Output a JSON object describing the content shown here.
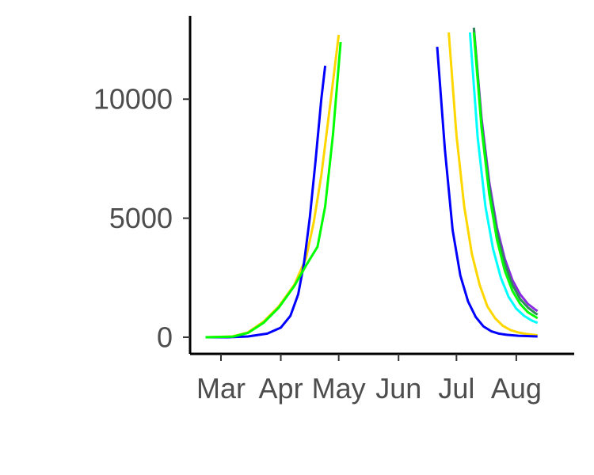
{
  "chart_data": {
    "type": "line",
    "title": "",
    "xlabel": "",
    "ylabel": "",
    "x_axis": {
      "type": "date",
      "range": [
        "2020-02-14",
        "2020-08-31"
      ],
      "ticks": [
        {
          "date": "2020-03-01",
          "label": "Mar"
        },
        {
          "date": "2020-04-01",
          "label": "Apr"
        },
        {
          "date": "2020-05-01",
          "label": "May"
        },
        {
          "date": "2020-06-01",
          "label": "Jun"
        },
        {
          "date": "2020-07-01",
          "label": "Jul"
        },
        {
          "date": "2020-08-01",
          "label": "Aug"
        }
      ]
    },
    "y_axis": {
      "range": [
        -700,
        13500
      ],
      "ticks": [
        {
          "value": 0,
          "label": "0"
        },
        {
          "value": 5000,
          "label": "5000"
        },
        {
          "value": 10000,
          "label": "10000"
        }
      ]
    },
    "grid": false,
    "legend": "none",
    "series": [
      {
        "color": "#8a2be2",
        "points": [
          [
            "2020-07-10",
            13000
          ],
          [
            "2020-07-14",
            9200
          ],
          [
            "2020-07-18",
            6500
          ],
          [
            "2020-07-22",
            4600
          ],
          [
            "2020-07-26",
            3300
          ],
          [
            "2020-07-30",
            2400
          ],
          [
            "2020-08-03",
            1800
          ],
          [
            "2020-08-07",
            1400
          ],
          [
            "2020-08-11",
            1150
          ],
          [
            "2020-08-12",
            1100
          ]
        ]
      },
      {
        "color": "#2e8b57",
        "points": [
          [
            "2020-07-10",
            13000
          ],
          [
            "2020-07-14",
            9000
          ],
          [
            "2020-07-18",
            6300
          ],
          [
            "2020-07-22",
            4400
          ],
          [
            "2020-07-26",
            3100
          ],
          [
            "2020-07-30",
            2200
          ],
          [
            "2020-08-03",
            1600
          ],
          [
            "2020-08-07",
            1250
          ],
          [
            "2020-08-11",
            1000
          ],
          [
            "2020-08-12",
            950
          ]
        ]
      },
      {
        "color": "#00ffff",
        "points": [
          [
            "2020-07-08",
            12800
          ],
          [
            "2020-07-12",
            8400
          ],
          [
            "2020-07-16",
            5500
          ],
          [
            "2020-07-20",
            3700
          ],
          [
            "2020-07-24",
            2500
          ],
          [
            "2020-07-28",
            1700
          ],
          [
            "2020-08-01",
            1200
          ],
          [
            "2020-08-05",
            900
          ],
          [
            "2020-08-09",
            700
          ],
          [
            "2020-08-12",
            600
          ]
        ]
      },
      {
        "color": "#ffd700",
        "points": [
          [
            "2020-02-22",
            0
          ],
          [
            "2020-03-07",
            30
          ],
          [
            "2020-03-15",
            200
          ],
          [
            "2020-03-23",
            650
          ],
          [
            "2020-03-31",
            1300
          ],
          [
            "2020-04-08",
            2200
          ],
          [
            "2020-04-14",
            3300
          ],
          [
            "2020-04-18",
            4800
          ],
          [
            "2020-04-22",
            6800
          ],
          [
            "2020-04-26",
            9400
          ],
          [
            "2020-05-01",
            12700
          ],
          null,
          [
            "2020-06-27",
            12800
          ],
          [
            "2020-07-01",
            8500
          ],
          [
            "2020-07-05",
            5500
          ],
          [
            "2020-07-09",
            3500
          ],
          [
            "2020-07-13",
            2200
          ],
          [
            "2020-07-17",
            1300
          ],
          [
            "2020-07-21",
            800
          ],
          [
            "2020-07-25",
            480
          ],
          [
            "2020-07-29",
            300
          ],
          [
            "2020-08-02",
            200
          ],
          [
            "2020-08-06",
            140
          ],
          [
            "2020-08-12",
            80
          ]
        ]
      },
      {
        "color": "#0000ff",
        "points": [
          [
            "2020-02-22",
            0
          ],
          [
            "2020-03-05",
            0
          ],
          [
            "2020-03-15",
            30
          ],
          [
            "2020-03-25",
            150
          ],
          [
            "2020-04-01",
            400
          ],
          [
            "2020-04-06",
            900
          ],
          [
            "2020-04-10",
            1800
          ],
          [
            "2020-04-13",
            3100
          ],
          [
            "2020-04-16",
            5000
          ],
          [
            "2020-04-19",
            7400
          ],
          [
            "2020-04-22",
            10000
          ],
          [
            "2020-04-24",
            11400
          ],
          null,
          [
            "2020-06-21",
            12200
          ],
          [
            "2020-06-25",
            7900
          ],
          [
            "2020-06-29",
            4500
          ],
          [
            "2020-07-03",
            2600
          ],
          [
            "2020-07-07",
            1500
          ],
          [
            "2020-07-11",
            850
          ],
          [
            "2020-07-15",
            450
          ],
          [
            "2020-07-19",
            250
          ],
          [
            "2020-07-23",
            150
          ],
          [
            "2020-07-27",
            100
          ],
          [
            "2020-08-02",
            60
          ],
          [
            "2020-08-12",
            30
          ]
        ]
      },
      {
        "color": "#00ff00",
        "points": [
          [
            "2020-02-22",
            0
          ],
          [
            "2020-03-07",
            20
          ],
          [
            "2020-03-15",
            180
          ],
          [
            "2020-03-23",
            600
          ],
          [
            "2020-03-31",
            1250
          ],
          [
            "2020-04-08",
            2150
          ],
          [
            "2020-04-14",
            3000
          ],
          [
            "2020-04-20",
            3800
          ],
          [
            "2020-04-24",
            5500
          ],
          [
            "2020-04-28",
            8500
          ],
          [
            "2020-05-02",
            12400
          ],
          null,
          [
            "2020-07-10",
            12800
          ],
          [
            "2020-07-14",
            8800
          ],
          [
            "2020-07-18",
            6000
          ],
          [
            "2020-07-22",
            4100
          ],
          [
            "2020-07-26",
            2800
          ],
          [
            "2020-07-30",
            1950
          ],
          [
            "2020-08-03",
            1400
          ],
          [
            "2020-08-07",
            1050
          ],
          [
            "2020-08-11",
            850
          ],
          [
            "2020-08-12",
            800
          ]
        ]
      }
    ]
  }
}
